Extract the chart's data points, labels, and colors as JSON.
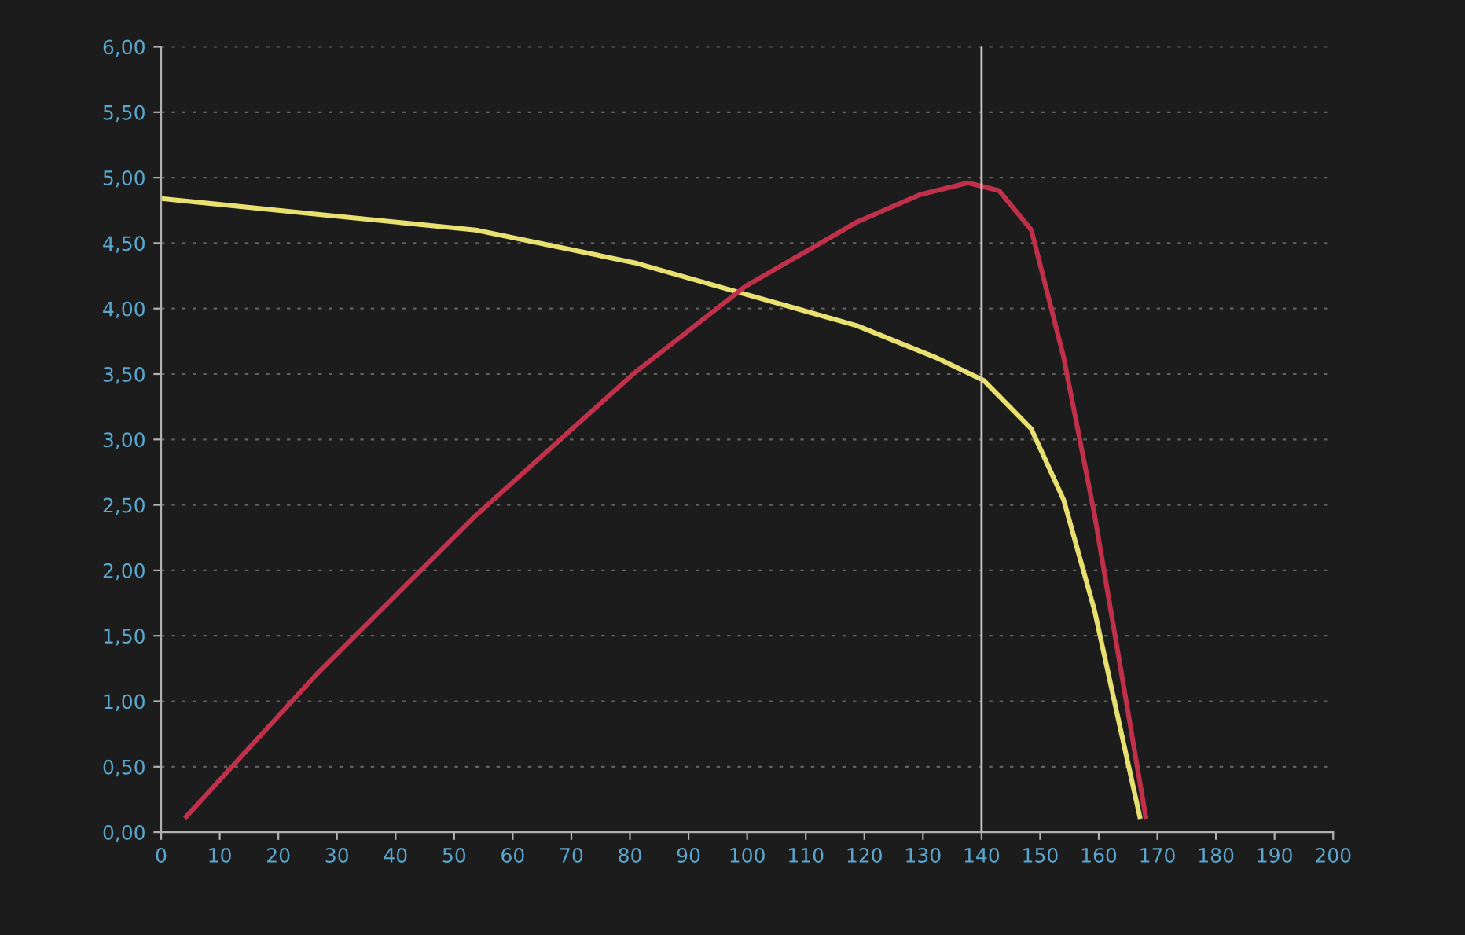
{
  "chart_data": {
    "type": "line",
    "x": [
      0,
      26.6,
      53.7,
      80.8,
      99.7,
      118.7,
      132,
      140.4,
      148.5,
      154,
      159.3,
      163.4,
      167
    ],
    "series": [
      {
        "color": "#e8e070",
        "values": [
          4.84,
          4.72,
          4.6,
          4.35,
          4.11,
          3.87,
          3.63,
          3.45,
          3.08,
          2.54,
          1.69,
          0.85,
          0.12
        ]
      },
      {
        "color": "#c0304a",
        "x": [
          4.3,
          26.6,
          53.7,
          80.8,
          99.7,
          118.7,
          129.5,
          137.7,
          143,
          148.5,
          154,
          159.3,
          164.8,
          168
        ],
        "values": [
          0.12,
          1.21,
          2.42,
          3.51,
          4.17,
          4.66,
          4.87,
          4.96,
          4.9,
          4.6,
          3.63,
          2.42,
          0.97,
          0.12
        ]
      }
    ],
    "xlim": [
      0,
      200
    ],
    "xticks": [
      0,
      10,
      20,
      30,
      40,
      50,
      60,
      70,
      80,
      90,
      100,
      110,
      120,
      130,
      140,
      150,
      160,
      170,
      180,
      190,
      200
    ],
    "ylim": [
      0,
      6
    ],
    "yticks": [
      {
        "value": 0,
        "label": "0,00"
      },
      {
        "value": 0.5,
        "label": "0,50"
      },
      {
        "value": 1,
        "label": "1,00"
      },
      {
        "value": 1.5,
        "label": "1,50"
      },
      {
        "value": 2,
        "label": "2,00"
      },
      {
        "value": 2.5,
        "label": "2,50"
      },
      {
        "value": 3,
        "label": "3,00"
      },
      {
        "value": 3.5,
        "label": "3,50"
      },
      {
        "value": 4,
        "label": "4,00"
      },
      {
        "value": 4.5,
        "label": "4,50"
      },
      {
        "value": 5,
        "label": "5,00"
      },
      {
        "value": 5.5,
        "label": "5,50"
      },
      {
        "value": 6,
        "label": "6,00"
      }
    ],
    "grid": "y",
    "ref_lines": [
      {
        "axis": "x",
        "value": 140,
        "color": "#c8c8c8",
        "line_style": "solid"
      }
    ]
  }
}
